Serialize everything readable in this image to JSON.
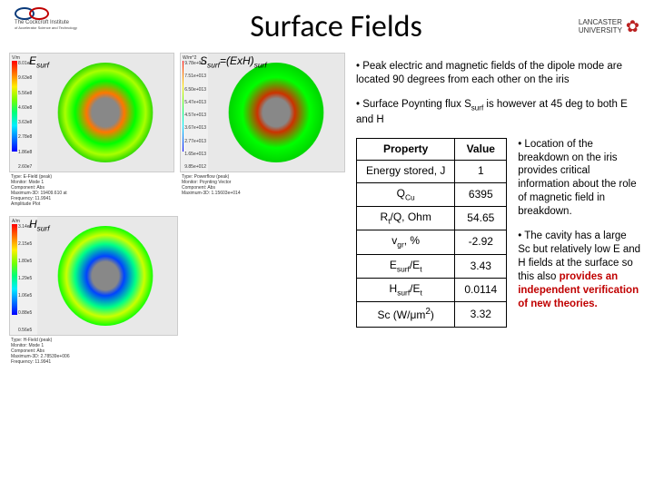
{
  "header": {
    "title": "Surface Fields",
    "logo_left_text": "The Cockcroft Institute",
    "logo_left_sub": "of Accelerator Science and Technology",
    "logo_right_text": "LANCASTER UNIVERSITY",
    "logo_colors": {
      "blue": "#0a3a7a",
      "red": "#c00000"
    }
  },
  "sims": {
    "e": {
      "label": "E",
      "sub": "surf",
      "unit": "V/m",
      "ticks": [
        "8.01e8",
        "9.63e8",
        "5.56e8",
        "4.60e8",
        "3.63e8",
        "2.78e8",
        "1.86e8",
        "2.60e7"
      ],
      "info": "Type: E-Field (peak)\nMonitor: Mode 1\nComponent: Abs\nMaximum-3D: 19409.610 at\nFrequency: 11.9941\nAmplitude Plot",
      "ring_gradient": "radial-gradient(circle, #ff7700 20%, #00ff00 45%, #00ff00 60%, #aaff00 70%, #00cc00 80%)"
    },
    "s": {
      "label": "S",
      "sub": "surf",
      "suffix": "=(ExH)",
      "sub2": "surf",
      "unit": "W/m^2",
      "ticks": [
        "9.78e+013",
        "7.51e+013",
        "6.50e+013",
        "5.47e+013",
        "4.57e+013",
        "3.67e+013",
        "2.77e+013",
        "1.65e+013",
        "9.85e+012"
      ],
      "info": "Type: Powerflow (peak)\nMonitor: Poynting Vector\nComponent: Abs\nMaximum-3D: 1.15603e+014",
      "ring_gradient": "radial-gradient(circle, #cc3300 20%, #00ff00 50%, #00ff00 70%, #00aa00 80%)"
    },
    "h": {
      "label": "H",
      "sub": "surf",
      "unit": "A/m",
      "ticks": [
        "3.14e5",
        "2.15e5",
        "1.80e5",
        "1.29e5",
        "1.06e5",
        "0.88e5",
        "0.56e5"
      ],
      "info": "Type: H-Field (peak)\nMonitor: Mode 1\nComponent: Abs\nMaximum-3D: 2.78539e+006\nFrequency: 11.9941",
      "ring_gradient": "radial-gradient(circle, #0000ff 20%, #00ff00 50%, #ccff00 65%, #00ff00 80%)"
    }
  },
  "bullets": {
    "b1": "Peak electric and magnetic fields of the dipole mode are located 90 degrees from each other on the iris",
    "b2a": "Surface Poynting flux S",
    "b2b": "surf",
    "b2c": " is however at 45 deg to both E and H",
    "b3": "Location of the breakdown on the iris provides critical information about the role of magnetic field in breakdown.",
    "b4a": "The cavity has a large Sc but relatively low E and H fields at the surface so this also ",
    "b4b": "provides an independent verification of new theories."
  },
  "table": {
    "headers": {
      "prop": "Property",
      "val": "Value"
    },
    "rows": [
      {
        "prop": "Energy stored, J",
        "val": "1"
      },
      {
        "prop_html": "Q<sub>Cu</sub>",
        "val": "6395"
      },
      {
        "prop_html": "R<sub>t</sub>/Q, Ohm",
        "val": "54.65"
      },
      {
        "prop_html": "v<sub>gr</sub>, %",
        "val": "-2.92"
      },
      {
        "prop_html": "E<sub>surf</sub>/E<sub>t</sub>",
        "val": "3.43"
      },
      {
        "prop_html": "H<sub>surf</sub>/E<sub>t</sub>",
        "val": "0.0114"
      },
      {
        "prop_html": "Sc (W/μm<sup>2</sup>)",
        "val": "3.32"
      }
    ]
  },
  "colors": {
    "text": "#000000",
    "red": "#c00000",
    "scale_top": "#ff0000",
    "scale_bot": "#0000ff"
  }
}
